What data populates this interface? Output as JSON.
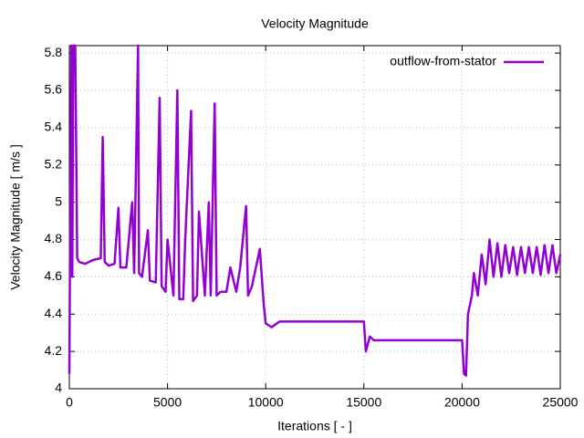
{
  "chart_data": {
    "type": "line",
    "title": "Velocity Magnitude",
    "xlabel": "Iterations [ - ]",
    "ylabel": "Velocity Magnitude [ m/s ]",
    "x": [
      0,
      50,
      100,
      150,
      200,
      300,
      400,
      500,
      800,
      1200,
      1600,
      1700,
      1800,
      2000,
      2300,
      2500,
      2600,
      2900,
      3200,
      3300,
      3500,
      3550,
      3700,
      4000,
      4100,
      4400,
      4600,
      4700,
      4900,
      5000,
      5300,
      5500,
      5600,
      5800,
      5900,
      6200,
      6300,
      6500,
      6600,
      6900,
      7100,
      7200,
      7400,
      7500,
      7700,
      8000,
      8200,
      8500,
      8700,
      9000,
      9100,
      9300,
      9700,
      9900,
      10000,
      10300,
      10700,
      11000,
      15000,
      15100,
      15300,
      15500,
      16000,
      20000,
      20100,
      20200,
      20300,
      20500,
      20600,
      20800,
      21000,
      21200,
      21400,
      21600,
      21800,
      22000,
      22200,
      22400,
      22600,
      22800,
      23000,
      23200,
      23400,
      23600,
      23800,
      24000,
      24200,
      24400,
      24600,
      24800,
      25000
    ],
    "series": [
      {
        "name": "outflow-from-stator",
        "color": "#9400d3",
        "values": [
          4.08,
          5.0,
          5.84,
          4.6,
          5.84,
          5.84,
          4.7,
          4.68,
          4.67,
          4.69,
          4.7,
          5.35,
          4.68,
          4.66,
          4.67,
          4.97,
          4.65,
          4.65,
          5.0,
          4.62,
          5.84,
          4.62,
          4.6,
          4.85,
          4.58,
          4.57,
          5.56,
          4.55,
          4.52,
          4.8,
          4.5,
          5.6,
          4.48,
          4.48,
          4.8,
          5.49,
          4.47,
          4.5,
          4.95,
          4.5,
          5.0,
          4.5,
          5.53,
          4.5,
          4.52,
          4.52,
          4.65,
          4.52,
          4.65,
          4.98,
          4.5,
          4.55,
          4.75,
          4.45,
          4.35,
          4.33,
          4.36,
          4.36,
          4.36,
          4.2,
          4.28,
          4.26,
          4.26,
          4.26,
          4.08,
          4.07,
          4.4,
          4.5,
          4.62,
          4.5,
          4.72,
          4.56,
          4.8,
          4.6,
          4.78,
          4.6,
          4.77,
          4.62,
          4.76,
          4.61,
          4.76,
          4.62,
          4.76,
          4.62,
          4.76,
          4.61,
          4.77,
          4.62,
          4.77,
          4.62,
          4.72
        ]
      }
    ],
    "xlim": [
      0,
      25000
    ],
    "xticks": [
      0,
      5000,
      10000,
      15000,
      20000,
      25000
    ],
    "ylim": [
      4,
      5.84
    ],
    "yticks": [
      4,
      4.2,
      4.4,
      4.6,
      4.8,
      5,
      5.2,
      5.4,
      5.6,
      5.8
    ],
    "grid": true,
    "legend": "top-right"
  }
}
